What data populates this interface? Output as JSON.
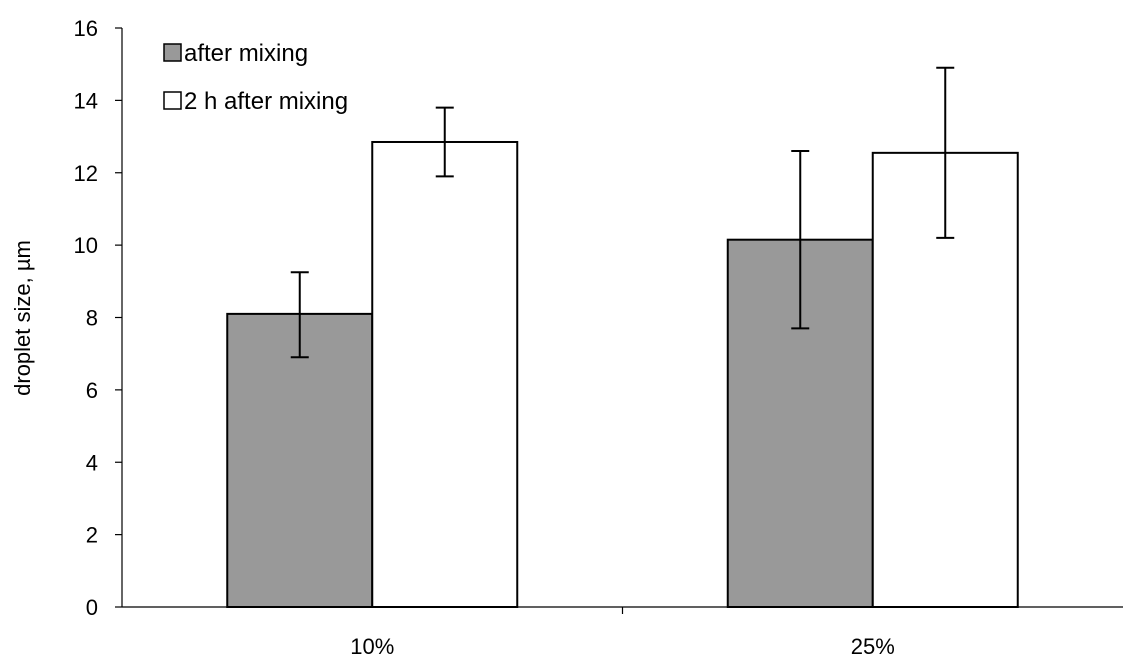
{
  "chart_data": {
    "type": "bar",
    "title": "",
    "xlabel": "",
    "ylabel": "droplet size, µm",
    "categories": [
      "10%",
      "25%"
    ],
    "ylim": [
      0,
      16
    ],
    "yticks": [
      0,
      2,
      4,
      6,
      8,
      10,
      12,
      14,
      16
    ],
    "grid": false,
    "legend_position": "top-left",
    "series": [
      {
        "name": "after mixing",
        "color": "#999999",
        "values": [
          8.1,
          10.15
        ],
        "error_low": [
          6.9,
          7.7
        ],
        "error_high": [
          9.25,
          12.6
        ]
      },
      {
        "name": "2 h after mixing",
        "color": "#ffffff",
        "values": [
          12.85,
          12.55
        ],
        "error_low": [
          11.9,
          10.2
        ],
        "error_high": [
          13.8,
          14.9
        ]
      }
    ]
  }
}
